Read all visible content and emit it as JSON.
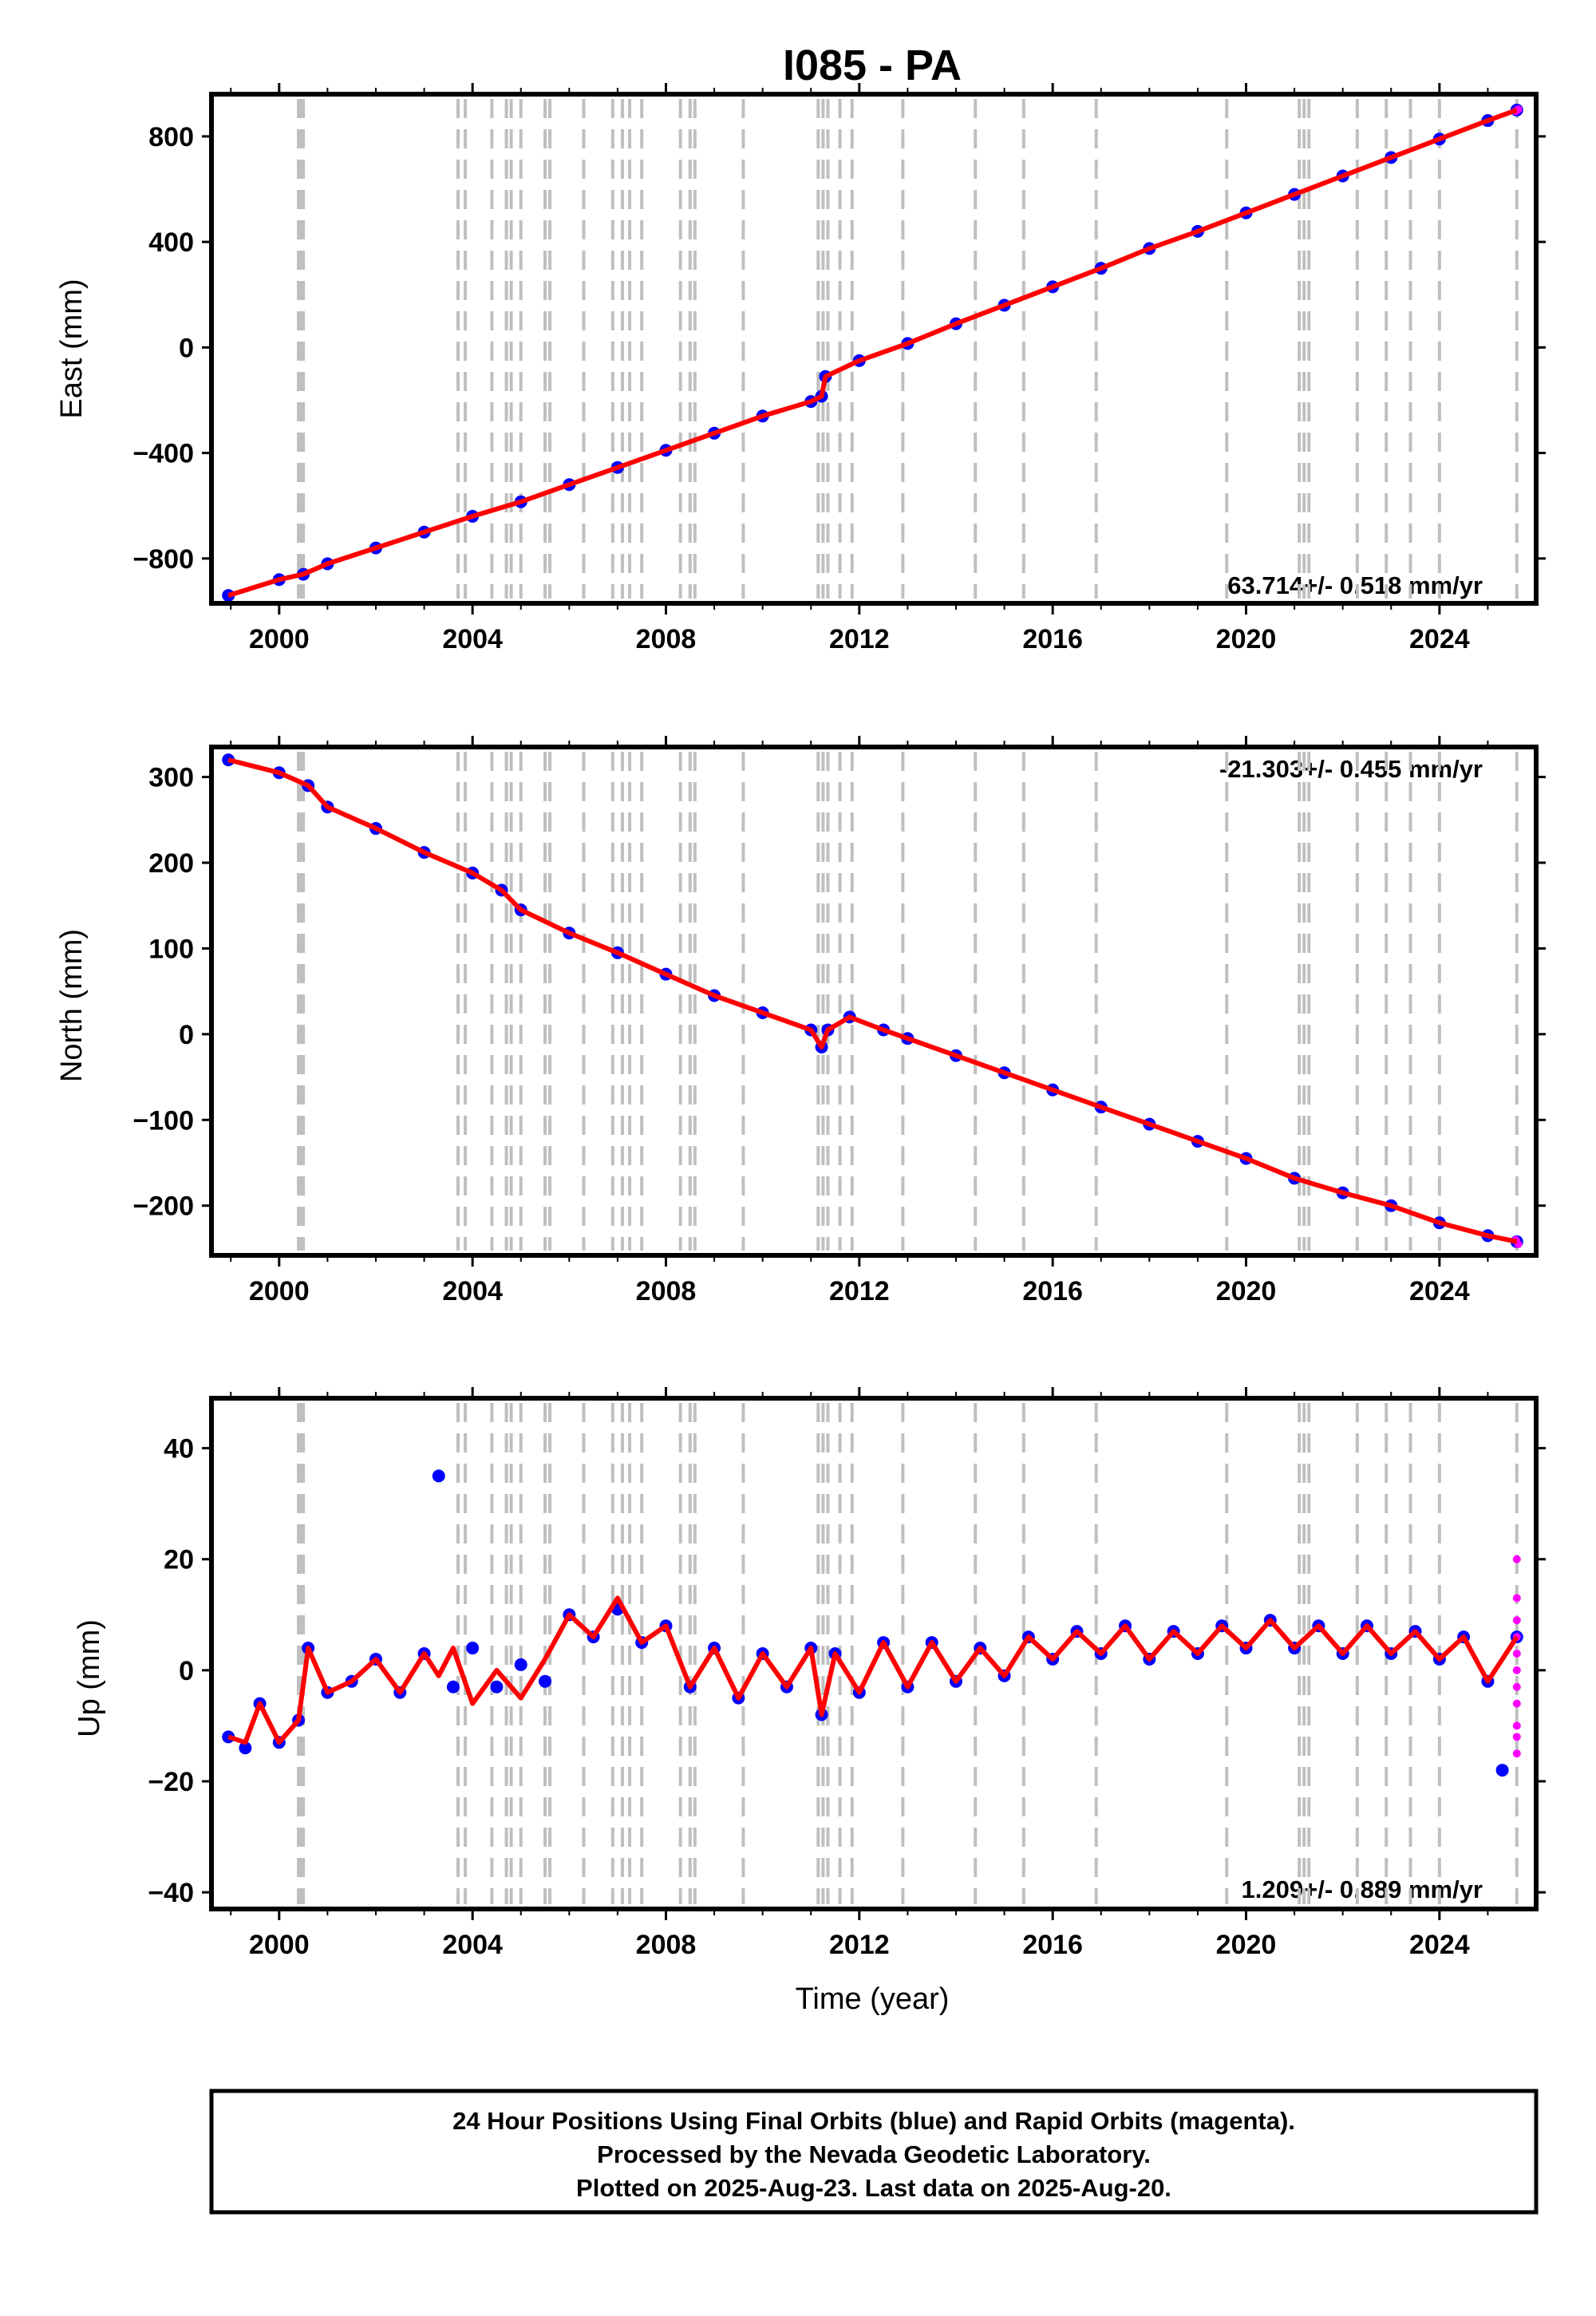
{
  "title": "I085 - PA",
  "xlabel": "Time (year)",
  "x_ticks": [
    "2000",
    "2004",
    "2008",
    "2012",
    "2016",
    "2020",
    "2024"
  ],
  "colors": {
    "final_orbits": "#0000ff",
    "rapid_orbits": "#ff00ff",
    "model": "#ff0000",
    "event_lines": "#bfbfbf"
  },
  "footer": {
    "line1": "24 Hour Positions Using Final Orbits (blue) and Rapid Orbits (magenta).",
    "line2": "Processed by the Nevada Geodetic Laboratory.",
    "line3": "Plotted on 2025-Aug-23. Last data on 2025-Aug-20."
  },
  "chart_data": [
    {
      "type": "scatter",
      "component": "east",
      "ylabel": "East (mm)",
      "rate_text": "63.714+/- 0.518 mm/yr",
      "xlim": [
        1998.6,
        2026.0
      ],
      "ylim": [
        -970,
        960
      ],
      "y_ticks": [
        "800",
        "400",
        "0",
        "−400",
        "−800"
      ],
      "y_tick_values": [
        800,
        400,
        0,
        -400,
        -800
      ],
      "series": [
        {
          "name": "Final Orbits (blue)",
          "x": [
            1998.95,
            2000.0,
            2000.5,
            2001.0,
            2002.0,
            2003.0,
            2004.0,
            2005.0,
            2006.0,
            2007.0,
            2008.0,
            2009.0,
            2010.0,
            2011.0,
            2011.22,
            2011.3,
            2012.0,
            2013.0,
            2014.0,
            2015.0,
            2016.0,
            2017.0,
            2018.0,
            2019.0,
            2020.0,
            2021.0,
            2022.0,
            2023.0,
            2024.0,
            2025.0,
            2025.6
          ],
          "y": [
            -940,
            -880,
            -860,
            -820,
            -760,
            -700,
            -640,
            -585,
            -520,
            -455,
            -390,
            -325,
            -260,
            -205,
            -185,
            -110,
            -50,
            15,
            90,
            160,
            230,
            300,
            375,
            440,
            510,
            580,
            650,
            720,
            790,
            860,
            900
          ]
        },
        {
          "name": "Rapid Orbits (magenta)",
          "x": [
            2025.58,
            2025.63
          ],
          "y": [
            896,
            902
          ]
        }
      ],
      "model": {
        "x": [
          1998.95,
          2000.0,
          2000.5,
          2001.0,
          2002.0,
          2003.0,
          2004.0,
          2005.0,
          2006.0,
          2007.0,
          2008.0,
          2009.0,
          2010.0,
          2011.0,
          2011.22,
          2011.3,
          2012.0,
          2013.0,
          2014.0,
          2015.0,
          2016.0,
          2017.0,
          2018.0,
          2019.0,
          2020.0,
          2021.0,
          2022.0,
          2023.0,
          2024.0,
          2025.0,
          2025.6
        ],
        "y": [
          -940,
          -880,
          -860,
          -820,
          -760,
          -700,
          -640,
          -585,
          -520,
          -455,
          -390,
          -325,
          -260,
          -205,
          -185,
          -110,
          -50,
          15,
          90,
          160,
          230,
          300,
          375,
          440,
          510,
          580,
          650,
          720,
          790,
          860,
          900
        ]
      }
    },
    {
      "type": "scatter",
      "component": "north",
      "ylabel": "North (mm)",
      "rate_text": "-21.303+/- 0.455 mm/yr",
      "xlim": [
        1998.6,
        2026.0
      ],
      "ylim": [
        -258,
        335
      ],
      "y_ticks": [
        "300",
        "200",
        "100",
        "0",
        "−100",
        "−200"
      ],
      "y_tick_values": [
        300,
        200,
        100,
        0,
        -100,
        -200
      ],
      "series": [
        {
          "name": "Final Orbits (blue)",
          "x": [
            1998.95,
            2000.0,
            2000.6,
            2001.0,
            2002.0,
            2003.0,
            2004.0,
            2004.6,
            2005.0,
            2006.0,
            2007.0,
            2008.0,
            2009.0,
            2010.0,
            2011.0,
            2011.22,
            2011.35,
            2011.8,
            2012.5,
            2013.0,
            2014.0,
            2015.0,
            2016.0,
            2017.0,
            2018.0,
            2019.0,
            2020.0,
            2021.0,
            2022.0,
            2023.0,
            2024.0,
            2025.0,
            2025.6
          ],
          "y": [
            320,
            305,
            290,
            265,
            240,
            212,
            188,
            168,
            145,
            118,
            95,
            70,
            45,
            25,
            5,
            -15,
            5,
            20,
            5,
            -5,
            -25,
            -45,
            -65,
            -85,
            -105,
            -125,
            -145,
            -168,
            -185,
            -200,
            -220,
            -235,
            -242
          ]
        },
        {
          "name": "Rapid Orbits (magenta)",
          "x": [
            2025.58,
            2025.63
          ],
          "y": [
            -240,
            -245
          ]
        }
      ],
      "model": {
        "x": [
          1998.95,
          2000.0,
          2000.6,
          2001.0,
          2002.0,
          2003.0,
          2004.0,
          2004.6,
          2005.0,
          2006.0,
          2007.0,
          2008.0,
          2009.0,
          2010.0,
          2011.0,
          2011.22,
          2011.35,
          2011.8,
          2012.5,
          2013.0,
          2014.0,
          2015.0,
          2016.0,
          2017.0,
          2018.0,
          2019.0,
          2020.0,
          2021.0,
          2022.0,
          2023.0,
          2024.0,
          2025.0,
          2025.6
        ],
        "y": [
          320,
          305,
          290,
          265,
          240,
          212,
          188,
          168,
          145,
          118,
          95,
          70,
          45,
          25,
          5,
          -15,
          5,
          20,
          5,
          -5,
          -25,
          -45,
          -65,
          -85,
          -105,
          -125,
          -145,
          -168,
          -185,
          -200,
          -220,
          -235,
          -242
        ]
      }
    },
    {
      "type": "scatter",
      "component": "up",
      "ylabel": "Up (mm)",
      "rate_text": "1.209+/- 0.889 mm/yr",
      "xlim": [
        1998.6,
        2026.0
      ],
      "ylim": [
        -43,
        49
      ],
      "y_ticks": [
        "40",
        "20",
        "0",
        "−20",
        "−40"
      ],
      "y_tick_values": [
        40,
        20,
        0,
        -20,
        -40
      ],
      "series": [
        {
          "name": "Final Orbits (blue)",
          "x": [
            1998.95,
            1999.3,
            1999.6,
            2000.0,
            2000.4,
            2000.6,
            2001.0,
            2001.5,
            2002.0,
            2002.5,
            2003.0,
            2003.3,
            2003.6,
            2004.0,
            2004.5,
            2005.0,
            2005.5,
            2006.0,
            2006.5,
            2007.0,
            2007.5,
            2008.0,
            2008.5,
            2009.0,
            2009.5,
            2010.0,
            2010.5,
            2011.0,
            2011.22,
            2011.5,
            2012.0,
            2012.5,
            2013.0,
            2013.5,
            2014.0,
            2014.5,
            2015.0,
            2015.5,
            2016.0,
            2016.5,
            2017.0,
            2017.5,
            2018.0,
            2018.5,
            2019.0,
            2019.5,
            2020.0,
            2020.5,
            2021.0,
            2021.5,
            2022.0,
            2022.5,
            2023.0,
            2023.5,
            2024.0,
            2024.5,
            2025.0,
            2025.3,
            2025.6
          ],
          "y": [
            -12,
            -14,
            -6,
            -13,
            -9,
            4,
            -4,
            -2,
            2,
            -4,
            3,
            35,
            -3,
            4,
            -3,
            1,
            -2,
            10,
            6,
            11,
            5,
            8,
            -3,
            4,
            -5,
            3,
            -3,
            4,
            -8,
            3,
            -4,
            5,
            -3,
            5,
            -2,
            4,
            -1,
            6,
            2,
            7,
            3,
            8,
            2,
            7,
            3,
            8,
            4,
            9,
            4,
            8,
            3,
            8,
            3,
            7,
            2,
            6,
            -2,
            -18,
            6
          ]
        },
        {
          "name": "Rapid Orbits (magenta)",
          "x": [
            2025.6,
            2025.6,
            2025.6,
            2025.6,
            2025.6,
            2025.6,
            2025.6,
            2025.6,
            2025.6,
            2025.6,
            2025.6
          ],
          "y": [
            20,
            13,
            9,
            6,
            3,
            0,
            -3,
            -6,
            -10,
            -12,
            -15
          ]
        }
      ],
      "model": {
        "x": [
          1998.95,
          1999.3,
          1999.6,
          2000.0,
          2000.4,
          2000.6,
          2001.0,
          2001.5,
          2002.0,
          2002.5,
          2003.0,
          2003.3,
          2003.6,
          2004.0,
          2004.5,
          2005.0,
          2005.5,
          2006.0,
          2006.5,
          2007.0,
          2007.5,
          2008.0,
          2008.5,
          2009.0,
          2009.5,
          2010.0,
          2010.5,
          2011.0,
          2011.22,
          2011.5,
          2012.0,
          2012.5,
          2013.0,
          2013.5,
          2014.0,
          2014.5,
          2015.0,
          2015.5,
          2016.0,
          2016.5,
          2017.0,
          2017.5,
          2018.0,
          2018.5,
          2019.0,
          2019.5,
          2020.0,
          2020.5,
          2021.0,
          2021.5,
          2022.0,
          2022.5,
          2023.0,
          2023.5,
          2024.0,
          2024.5,
          2025.0,
          2025.3,
          2025.6
        ],
        "y": [
          -12,
          -13,
          -6,
          -13,
          -9,
          4,
          -4,
          -2,
          2,
          -4,
          3,
          -1,
          4,
          -6,
          0,
          -5,
          2,
          10,
          6,
          13,
          5,
          8,
          -3,
          4,
          -5,
          3,
          -3,
          4,
          -8,
          3,
          -4,
          5,
          -3,
          5,
          -2,
          4,
          -1,
          6,
          2,
          7,
          3,
          8,
          2,
          7,
          3,
          8,
          4,
          9,
          4,
          8,
          3,
          8,
          3,
          7,
          2,
          6,
          -2,
          2,
          6
        ]
      }
    }
  ],
  "event_lines": [
    2000.4,
    2000.45,
    2000.5,
    2003.7,
    2003.85,
    2004.4,
    2004.7,
    2004.8,
    2005.0,
    2005.5,
    2005.6,
    2006.3,
    2006.9,
    2007.1,
    2007.25,
    2007.5,
    2008.3,
    2008.5,
    2008.6,
    2009.6,
    2011.15,
    2011.25,
    2011.35,
    2011.6,
    2011.85,
    2012.9,
    2014.4,
    2015.4,
    2016.9,
    2019.6,
    2021.1,
    2021.2,
    2021.3,
    2022.3,
    2022.9,
    2023.4,
    2024.0,
    2025.6
  ]
}
